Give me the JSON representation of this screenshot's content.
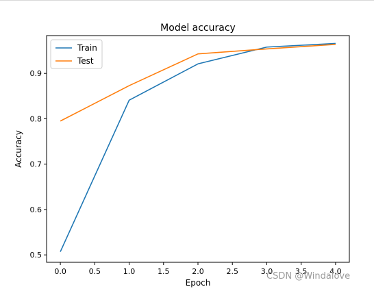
{
  "watermark": "CSDN @Windalove",
  "chart_data": {
    "type": "line",
    "title": "Model accuracy",
    "xlabel": "Epoch",
    "ylabel": "Accuracy",
    "x": [
      0,
      1,
      2,
      3,
      4
    ],
    "series": [
      {
        "name": "Train",
        "color": "#1f77b4",
        "values": [
          0.507,
          0.841,
          0.921,
          0.958,
          0.966
        ]
      },
      {
        "name": "Test",
        "color": "#ff7f0e",
        "values": [
          0.795,
          0.873,
          0.943,
          0.954,
          0.964
        ]
      }
    ],
    "xlim": [
      -0.2,
      4.2
    ],
    "ylim": [
      0.4837,
      0.9833
    ],
    "xticks": [
      0.0,
      0.5,
      1.0,
      1.5,
      2.0,
      2.5,
      3.0,
      3.5,
      4.0
    ],
    "xtick_labels": [
      "0.0",
      "0.5",
      "1.0",
      "1.5",
      "2.0",
      "2.5",
      "3.0",
      "3.5",
      "4.0"
    ],
    "yticks": [
      0.5,
      0.6,
      0.7,
      0.8,
      0.9
    ],
    "ytick_labels": [
      "0.5",
      "0.6",
      "0.7",
      "0.8",
      "0.9"
    ],
    "grid": false,
    "legend": "upper left"
  }
}
